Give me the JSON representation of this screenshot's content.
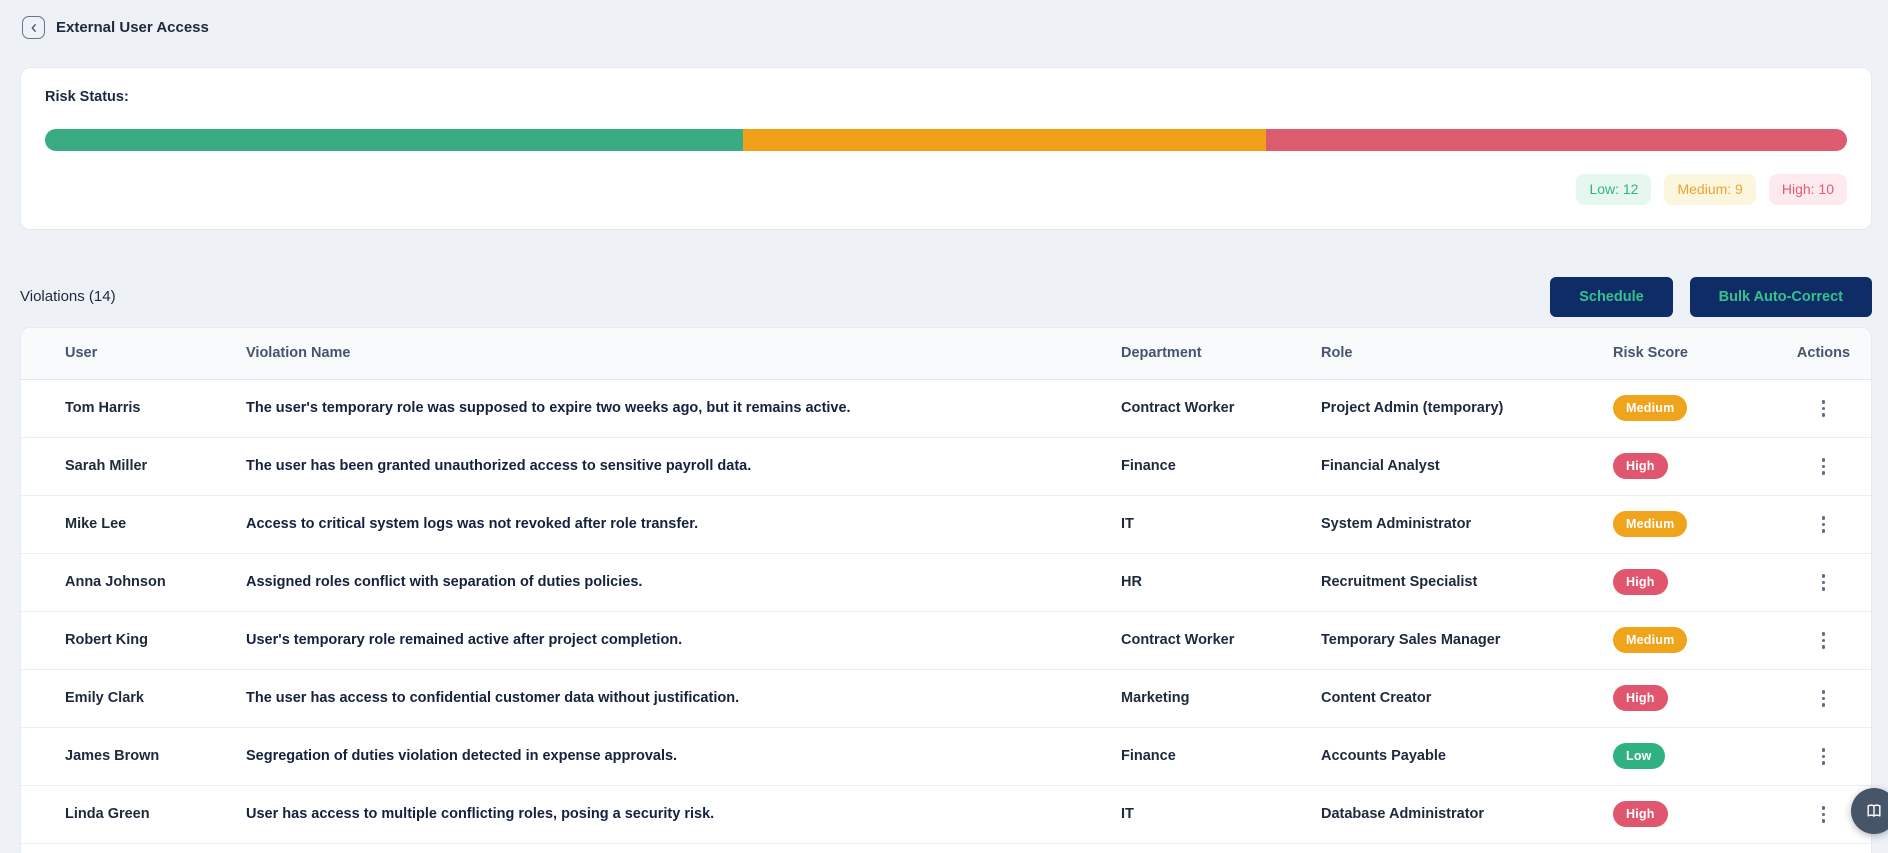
{
  "page": {
    "title": "External User Access"
  },
  "risk_status": {
    "label": "Risk Status:",
    "segments": [
      {
        "level": "low",
        "count": 12,
        "color": "#38ab82"
      },
      {
        "level": "medium",
        "count": 9,
        "color": "#f0a019"
      },
      {
        "level": "high",
        "count": 10,
        "color": "#dd5b6f"
      }
    ],
    "legend": [
      {
        "level": "low",
        "label": "Low: 12"
      },
      {
        "level": "medium",
        "label": "Medium: 9"
      },
      {
        "level": "high",
        "label": "High: 10"
      }
    ]
  },
  "violations": {
    "title": "Violations (14)",
    "count": 14,
    "schedule_button": "Schedule",
    "bulk_button": "Bulk Auto-Correct",
    "table": {
      "columns": [
        "User",
        "Violation Name",
        "Department",
        "Role",
        "Risk Score",
        "Actions"
      ],
      "rows": [
        {
          "user": "Tom Harris",
          "violation": "The user's temporary role was supposed to expire two weeks ago, but it remains active.",
          "department": "Contract Worker",
          "role": "Project Admin (temporary)",
          "risk": "Medium"
        },
        {
          "user": "Sarah Miller",
          "violation": "The user has been granted unauthorized access to sensitive payroll data.",
          "department": "Finance",
          "role": "Financial Analyst",
          "risk": "High"
        },
        {
          "user": "Mike Lee",
          "violation": "Access to critical system logs was not revoked after role transfer.",
          "department": "IT",
          "role": "System Administrator",
          "risk": "Medium"
        },
        {
          "user": "Anna Johnson",
          "violation": "Assigned roles conflict with separation of duties policies.",
          "department": "HR",
          "role": "Recruitment Specialist",
          "risk": "High"
        },
        {
          "user": "Robert King",
          "violation": "User's temporary role remained active after project completion.",
          "department": "Contract Worker",
          "role": "Temporary Sales Manager",
          "risk": "Medium"
        },
        {
          "user": "Emily Clark",
          "violation": "The user has access to confidential customer data without justification.",
          "department": "Marketing",
          "role": "Content Creator",
          "risk": "High"
        },
        {
          "user": "James Brown",
          "violation": "Segregation of duties violation detected in expense approvals.",
          "department": "Finance",
          "role": "Accounts Payable",
          "risk": "Low"
        },
        {
          "user": "Linda Green",
          "violation": "User has access to multiple conflicting roles, posing a security risk.",
          "department": "IT",
          "role": "Database Administrator",
          "risk": "High"
        }
      ]
    }
  },
  "fab": {
    "icon": "open-book"
  },
  "colors": {
    "page_background": "#eef2f7",
    "button_navy": "#0e2d66",
    "button_text": "#36c18c",
    "badge_low": "#2fb181",
    "badge_medium": "#f0a41c",
    "badge_high": "#e0566f",
    "fab_background": "#475569"
  }
}
